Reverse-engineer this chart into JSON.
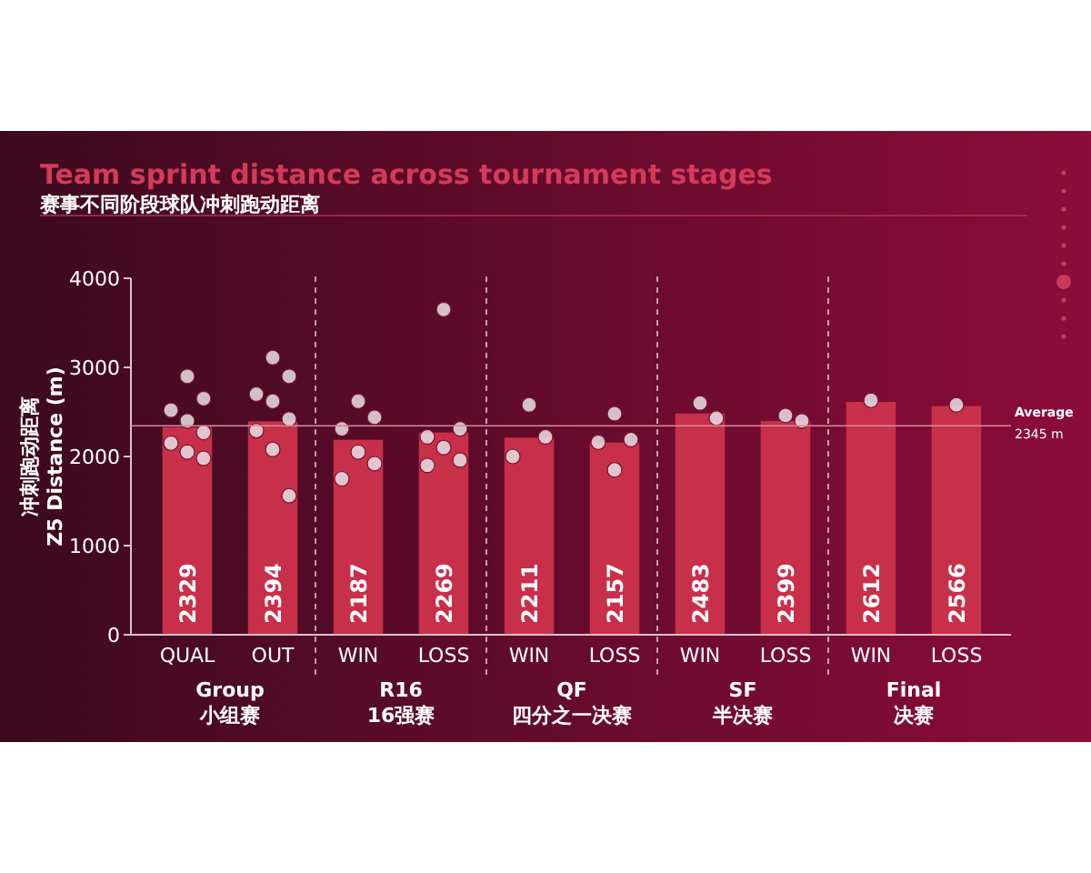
{
  "chart_data": {
    "type": "bar",
    "title": "Team sprint distance across tournament stages",
    "subtitle": "赛事不同阶段球队冲刺跑动距离",
    "ylabel": "冲刺跑动距离\nZ5 Distance (m)",
    "categories": [
      "QUAL",
      "OUT",
      "WIN",
      "LOSS",
      "WIN",
      "LOSS",
      "WIN",
      "LOSS",
      "WIN",
      "LOSS"
    ],
    "series": [
      {
        "color": "#c8304a",
        "values": [
          2329,
          2394,
          2187,
          2269,
          2211,
          2157,
          2483,
          2399,
          2612,
          2566
        ],
        "value_labels": [
          "2329",
          "2394",
          "2187",
          "2269",
          "2211",
          "2157",
          "2483",
          "2399",
          "2612",
          "2566"
        ]
      },
      {
        "type": "scatter",
        "color": "#e8e0e4",
        "values": [
          2900,
          3110,
          2620,
          3650,
          2580,
          2480,
          2600,
          2460,
          2630,
          2580
        ]
      },
      {
        "type": "scatter",
        "color": "#e8e0e4",
        "values": [
          2650,
          2900,
          2440,
          2310,
          2220,
          2190,
          2430,
          2400,
          null,
          null
        ]
      },
      {
        "type": "scatter",
        "color": "#e8e0e4",
        "values": [
          2520,
          2700,
          2310,
          2220,
          2000,
          2160,
          null,
          null,
          null,
          null
        ]
      },
      {
        "type": "scatter",
        "color": "#e8e0e4",
        "values": [
          2400,
          2620,
          2050,
          2100,
          null,
          1850,
          null,
          null,
          null,
          null
        ]
      },
      {
        "type": "scatter",
        "color": "#e8e0e4",
        "values": [
          2270,
          2420,
          1920,
          1960,
          null,
          null,
          null,
          null,
          null,
          null
        ]
      },
      {
        "type": "scatter",
        "color": "#e8e0e4",
        "values": [
          2150,
          2290,
          1750,
          1900,
          null,
          null,
          null,
          null,
          null,
          null
        ]
      },
      {
        "type": "scatter",
        "color": "#e8e0e4",
        "values": [
          2050,
          2080,
          null,
          null,
          null,
          null,
          null,
          null,
          null,
          null
        ]
      },
      {
        "type": "scatter",
        "color": "#e8e0e4",
        "values": [
          1980,
          1560,
          null,
          null,
          null,
          null,
          null,
          null,
          null,
          null
        ]
      }
    ],
    "ylim": [
      0,
      4000
    ],
    "yticks": [
      0,
      1000,
      2000,
      3000,
      4000
    ],
    "grid": false,
    "marker": "circle",
    "ref_lines": [
      {
        "axis": "y",
        "value": 2345,
        "label": "Average\n2345 m",
        "color": "#d88a9a"
      }
    ],
    "annotations": [
      "Group\n小组赛",
      "R16\n16强赛",
      "QF\n四分之一决赛",
      "SF\n半决赛",
      "Final\n决赛"
    ]
  }
}
